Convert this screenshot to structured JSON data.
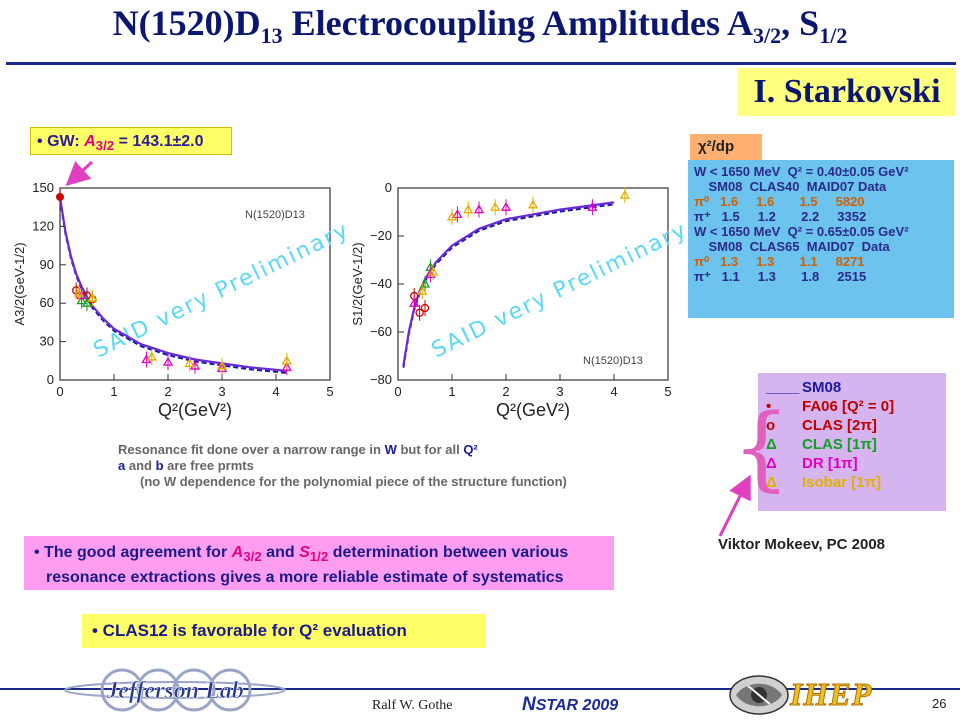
{
  "title": {
    "main": "N(1520)D",
    "sub1": "13",
    "mid": " Electrocoupling Amplitudes A",
    "sub2": "3/2",
    "sep": ", S",
    "sub3": "1/2"
  },
  "author": "I. Starkovski",
  "gw_box": {
    "bullet": "•",
    "prefix": "GW: ",
    "amp": "A",
    "amp_sub": "3/2",
    "value": " = 143.1±2.0"
  },
  "chi_table": {
    "tab": "χ²/dp",
    "rows": [
      {
        "text": "W < 1650 MeV  Q² = 0.40±0.05 GeV²",
        "cls": ""
      },
      {
        "text": "    SM08  CLAS40  MAID07 Data",
        "cls": ""
      },
      {
        "text": "π⁰   1.6     1.6       1.5     5820",
        "cls": "or"
      },
      {
        "text": "π⁺   1.5     1.2       2.2     3352",
        "cls": ""
      },
      {
        "text": "W < 1650 MeV  Q² = 0.65±0.05 GeV²",
        "cls": ""
      },
      {
        "text": "    SM08  CLAS65  MAID07  Data",
        "cls": ""
      },
      {
        "text": "π⁰   1.3     1.3       1.1     8271",
        "cls": "or"
      },
      {
        "text": "π⁺   1.1     1.3       1.8     2515",
        "cls": ""
      }
    ]
  },
  "legend": {
    "items": [
      {
        "sym": "____",
        "label": "SM08",
        "color": "#1a1aa0"
      },
      {
        "sym": "•",
        "label": "FA06   [Q² = 0]",
        "color": "#c00000"
      },
      {
        "sym": "o",
        "label": "CLAS   [2π]",
        "color": "#c00000"
      },
      {
        "sym": "Δ",
        "label": "CLAS   [1π]",
        "color": "#10a020"
      },
      {
        "sym": "Δ",
        "label": "DR       [1π]",
        "color": "#e000c0"
      },
      {
        "sym": "Δ",
        "label": "Isobar [1π]",
        "color": "#e0b000"
      }
    ],
    "brace": "{"
  },
  "mokeev": "Viktor Mokeev, PC 2008",
  "notes": {
    "line1a": "Resonance fit done over a narrow range in ",
    "line1b": "W",
    "line1c": " but for all ",
    "line1d": "Q²",
    "line2a": "a",
    "line2b": " and ",
    "line2c": "b",
    "line2d": " are free prmts",
    "line3": "(no W dependence for the polynomial piece of the structure function)"
  },
  "agree": {
    "bullet": "•",
    "a": " The good agreement for ",
    "b": "A",
    "b_sub": "3/2",
    "c": " and ",
    "d": "S",
    "d_sub": "1/2",
    "e": " determination between various",
    "line2": "resonance extractions gives a more reliable estimate of systematics"
  },
  "clas12": "• CLAS12 is favorable for Q² evaluation",
  "footer": {
    "presenter": "Ralf  W. Gothe",
    "conference_n": "N",
    "conference_rest": "STAR 2009",
    "page": "26",
    "logo_left": "Jefferson Lab",
    "logo_right": "IHEP"
  },
  "colors": {
    "title": "#0b1670",
    "sm08": "#6a2ad8",
    "arrow": "#e040c0"
  },
  "chart_data": [
    {
      "type": "scatter",
      "title": "N(1520)D13",
      "ylabel": "A3/2(GeV-1/2)",
      "xlabel": "Q²(GeV²)",
      "xlim": [
        0,
        5
      ],
      "ylim": [
        0,
        150
      ],
      "xticks": [
        "0",
        "1",
        "2",
        "3",
        "4",
        "5"
      ],
      "yticks": [
        "0",
        "30",
        "60",
        "90",
        "120",
        "150"
      ],
      "watermark": "SAID very Preliminary",
      "curve": {
        "x": [
          0,
          0.1,
          0.2,
          0.3,
          0.4,
          0.5,
          0.6,
          0.8,
          1.0,
          1.5,
          2.0,
          2.5,
          3.0,
          3.5,
          4.0,
          4.2
        ],
        "y": [
          143,
          116,
          97,
          83,
          73,
          65,
          58,
          48,
          40,
          28,
          21,
          16,
          13,
          10,
          8,
          7
        ]
      },
      "series": [
        {
          "name": "FA06",
          "points": [
            [
              0,
              143
            ]
          ]
        },
        {
          "name": "CLAS 2π",
          "points": [
            [
              0.3,
              70
            ],
            [
              0.5,
              66
            ],
            [
              0.6,
              63
            ]
          ]
        },
        {
          "name": "CLAS 1π",
          "points": [
            [
              0.4,
              62
            ],
            [
              0.5,
              60
            ]
          ]
        },
        {
          "name": "DR",
          "points": [
            [
              0.4,
              66
            ],
            [
              1.6,
              16
            ],
            [
              2.0,
              14
            ],
            [
              2.5,
              11
            ],
            [
              3.0,
              9
            ],
            [
              4.2,
              10
            ]
          ]
        },
        {
          "name": "Isobar",
          "points": [
            [
              0.35,
              68
            ],
            [
              0.6,
              64
            ],
            [
              1.7,
              18
            ],
            [
              2.4,
              13
            ],
            [
              3.0,
              11
            ],
            [
              4.2,
              15
            ]
          ]
        }
      ]
    },
    {
      "type": "scatter",
      "title": "N(1520)D13",
      "ylabel": "S1/2(GeV-1/2)",
      "xlabel": "Q²(GeV²)",
      "xlim": [
        0,
        5
      ],
      "ylim": [
        -80,
        0
      ],
      "xticks": [
        "0",
        "1",
        "2",
        "3",
        "4",
        "5"
      ],
      "yticks": [
        "0",
        "−20",
        "−40",
        "−60",
        "−80"
      ],
      "watermark": "SAID very Preliminary",
      "curve": {
        "x": [
          0.1,
          0.2,
          0.3,
          0.4,
          0.5,
          0.7,
          1.0,
          1.5,
          2.0,
          2.5,
          3.0,
          3.5,
          4.0
        ],
        "y": [
          -74,
          -60,
          -50,
          -43,
          -38,
          -31,
          -24,
          -17,
          -13,
          -11,
          -9,
          -7.5,
          -6
        ]
      },
      "series": [
        {
          "name": "CLAS 2π",
          "points": [
            [
              0.3,
              -45
            ],
            [
              0.4,
              -52
            ],
            [
              0.5,
              -50
            ]
          ]
        },
        {
          "name": "CLAS 1π",
          "points": [
            [
              0.5,
              -40
            ],
            [
              0.6,
              -33
            ]
          ]
        },
        {
          "name": "DR",
          "points": [
            [
              0.3,
              -48
            ],
            [
              0.6,
              -36
            ],
            [
              1.1,
              -11
            ],
            [
              1.5,
              -9
            ],
            [
              2.0,
              -8
            ],
            [
              3.6,
              -8
            ]
          ]
        },
        {
          "name": "Isobar",
          "points": [
            [
              0.45,
              -43
            ],
            [
              0.65,
              -35
            ],
            [
              1.0,
              -12
            ],
            [
              1.3,
              -9
            ],
            [
              1.8,
              -8
            ],
            [
              2.5,
              -7
            ],
            [
              4.2,
              -3
            ]
          ]
        }
      ]
    }
  ]
}
